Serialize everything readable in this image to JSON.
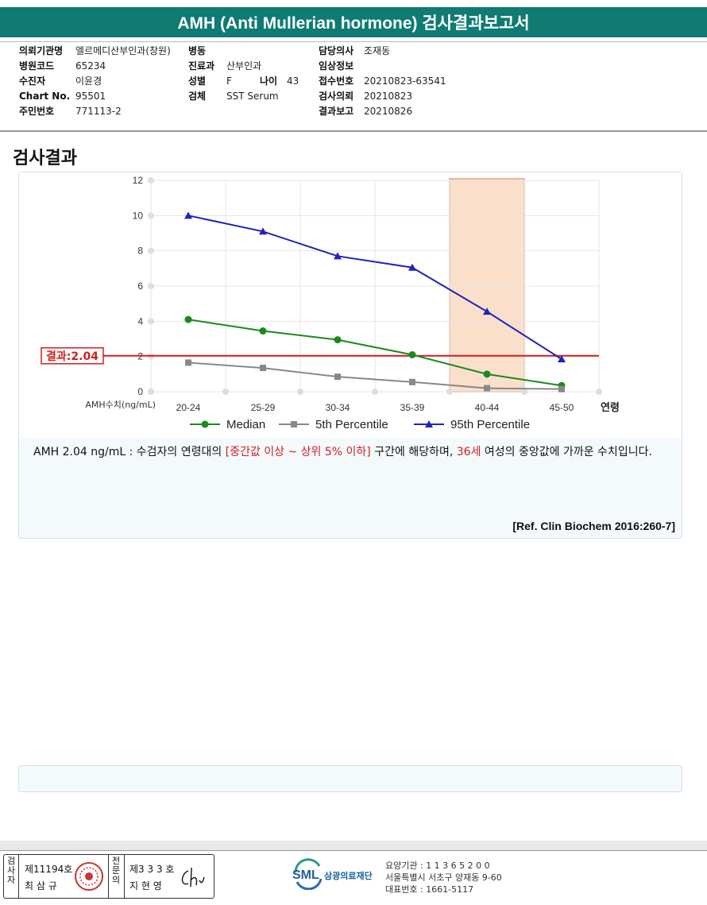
{
  "title": "AMH (Anti Mullerian hormone) 검사결과보고서",
  "info": {
    "col1": [
      {
        "label": "의뢰기관명",
        "value": "엘르메디산부인과(창원)"
      },
      {
        "label": "병원코드",
        "value": "65234"
      },
      {
        "label": "수진자",
        "value": "이윤경"
      },
      {
        "label": "Chart No.",
        "value": "95501"
      },
      {
        "label": "주민번호",
        "value": "771113-2"
      }
    ],
    "col2": [
      {
        "label": "병동",
        "value": ""
      },
      {
        "label": "진료과",
        "value": "산부인과"
      },
      {
        "label": "성별",
        "value": "F"
      },
      {
        "label": "검체",
        "value": "SST Serum"
      }
    ],
    "age_label": "나이",
    "age_value": "43",
    "col3": [
      {
        "label": "담당의사",
        "value": "조재동"
      },
      {
        "label": "임상정보",
        "value": ""
      },
      {
        "label": "접수번호",
        "value": "20210823-63541"
      },
      {
        "label": "검사의뢰",
        "value": "20210823"
      },
      {
        "label": "결과보고",
        "value": "20210826"
      }
    ]
  },
  "section_title": "검사결과",
  "chart_data": {
    "type": "line",
    "categories": [
      "20-24",
      "25-29",
      "30-34",
      "35-39",
      "40-44",
      "45-50"
    ],
    "xlabel": "연령",
    "ylabel": "AMH수치(ng/mL)",
    "ylim": [
      0,
      12
    ],
    "yticks": [
      "0",
      "2",
      "4",
      "6",
      "8",
      "10",
      "12"
    ],
    "grid": true,
    "legend_position": "bottom",
    "series": [
      {
        "name": "Median",
        "values": [
          4.1,
          3.45,
          2.95,
          2.1,
          1.0,
          0.35
        ],
        "color": "#1a8a1a",
        "marker": "circle"
      },
      {
        "name": "5th Percentile",
        "values": [
          1.65,
          1.35,
          0.85,
          0.55,
          0.2,
          0.15
        ],
        "color": "#888888",
        "marker": "square"
      },
      {
        "name": "95th Percentile",
        "values": [
          10.0,
          9.1,
          7.7,
          7.05,
          4.55,
          1.85
        ],
        "color": "#2222bb",
        "marker": "triangle"
      }
    ],
    "result_line": {
      "label": "결과:2.04",
      "value": 2.04,
      "color": "#d02020"
    },
    "highlight_category": "40-44",
    "highlight_color": "#f6c9a8"
  },
  "comment": {
    "prefix": "AMH  2.04 ng/mL : 수검자의 연령대의 ",
    "range": "[중간값 이상 ~ 상위 5% 이하]",
    "middle": "  구간에 해당하며, ",
    "age": "36세",
    "suffix": " 여성의 중앙값에 가까운 수치입니다."
  },
  "reference": "[Ref. Clin Biochem 2016:260-7]",
  "signature": {
    "label1": "검사자",
    "cert1": "제11194호",
    "name1": "최 삼 규",
    "label2": "전문의",
    "cert2": "제3 3 3 호",
    "name2": "지 현 영"
  },
  "organization": {
    "logo": "SML",
    "name": "삼광의료재단",
    "line1": "요양기관 : 1 1 3 6 5 2 0 0",
    "line2": "서울특별시 서초구 양재동 9-60",
    "line3": "대표번호 : 1661-5117"
  }
}
